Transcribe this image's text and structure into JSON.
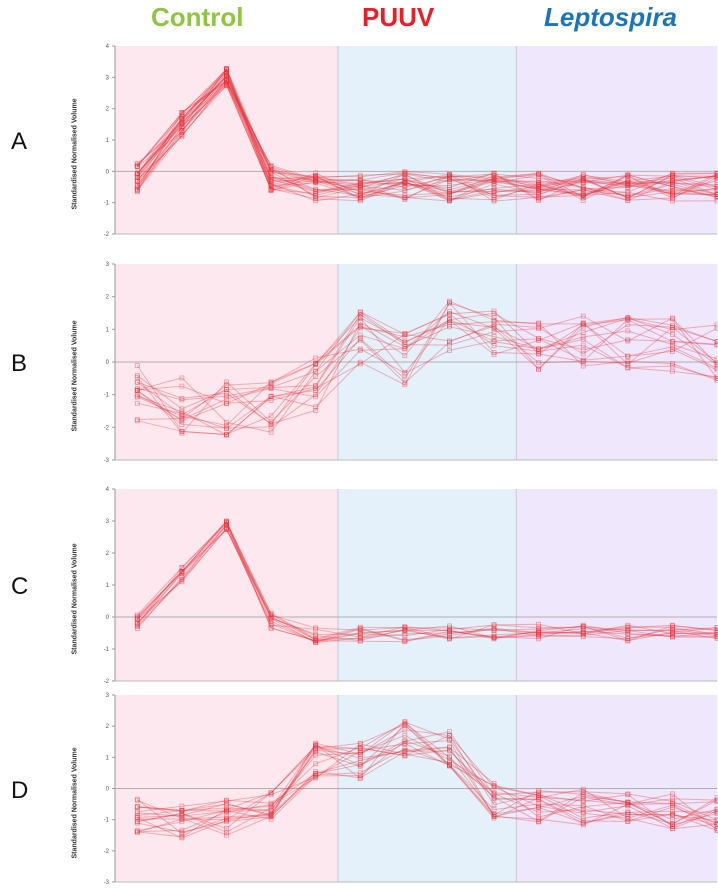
{
  "header": {
    "groups": [
      {
        "label": "Control",
        "color": "#8dc63f"
      },
      {
        "label": "PUUV",
        "color": "#ee1c24"
      },
      {
        "label": "Leptospira",
        "color": "#1b75bc"
      }
    ]
  },
  "colors": {
    "line": "#e8303a",
    "control_bg": "#fde8ef",
    "puuv_bg": "#e4f1fb",
    "lepto_bg": "#efe7fb",
    "zero_line": "#b0b0b0"
  },
  "chart_data": [
    {
      "type": "line",
      "panel": "A",
      "ylabel": "Standardised Normalised Volume",
      "ylim": [
        -2,
        4
      ],
      "yticks": [
        "4",
        "3",
        "2",
        "1",
        "0",
        "-1",
        "-2"
      ],
      "x": [
        1,
        2,
        3,
        4,
        5,
        6,
        7,
        8,
        9,
        10,
        11,
        12,
        13,
        14
      ],
      "groups": [
        {
          "name": "Control",
          "x_range": [
            0.5,
            5.5
          ]
        },
        {
          "name": "PUUV",
          "x_range": [
            5.5,
            9.5
          ]
        },
        {
          "name": "Leptospira",
          "x_range": [
            9.5,
            13.5
          ]
        }
      ],
      "representative_profile": [
        -0.2,
        1.5,
        3.0,
        -0.2,
        -0.5,
        -0.5,
        -0.45,
        -0.5,
        -0.5,
        -0.5,
        -0.5,
        -0.5,
        -0.5,
        -0.5
      ],
      "n_series": 26,
      "spread": 0.45
    },
    {
      "type": "line",
      "panel": "B",
      "ylabel": "Standardised Normalised Volume",
      "ylim": [
        -3,
        3
      ],
      "yticks": [
        "3",
        "2",
        "1",
        "0",
        "-1",
        "-2",
        "-3"
      ],
      "x": [
        1,
        2,
        3,
        4,
        5,
        6,
        7,
        8,
        9,
        10,
        11,
        12,
        13,
        14
      ],
      "groups": [
        {
          "name": "Control",
          "x_range": [
            0.5,
            5.5
          ]
        },
        {
          "name": "PUUV",
          "x_range": [
            5.5,
            9.5
          ]
        },
        {
          "name": "Leptospira",
          "x_range": [
            9.5,
            13.5
          ]
        }
      ],
      "representative_profile": [
        -1.0,
        -1.3,
        -1.5,
        -1.3,
        -0.7,
        0.8,
        0.2,
        1.2,
        0.7,
        0.6,
        0.7,
        0.5,
        0.5,
        0.3
      ],
      "n_series": 16,
      "spread": 0.9
    },
    {
      "type": "line",
      "panel": "C",
      "ylabel": "Standardised Normalised Volume",
      "ylim": [
        -2,
        4
      ],
      "yticks": [
        "4",
        "3",
        "2",
        "1",
        "0",
        "-1",
        "-2"
      ],
      "x": [
        1,
        2,
        3,
        4,
        5,
        6,
        7,
        8,
        9,
        10,
        11,
        12,
        13,
        14
      ],
      "groups": [
        {
          "name": "Control",
          "x_range": [
            0.5,
            5.5
          ]
        },
        {
          "name": "PUUV",
          "x_range": [
            5.5,
            9.5
          ]
        },
        {
          "name": "Leptospira",
          "x_range": [
            9.5,
            13.5
          ]
        }
      ],
      "representative_profile": [
        -0.15,
        1.3,
        2.9,
        -0.1,
        -0.55,
        -0.55,
        -0.55,
        -0.45,
        -0.45,
        -0.45,
        -0.5,
        -0.5,
        -0.5,
        -0.5
      ],
      "n_series": 12,
      "spread": 0.25
    },
    {
      "type": "line",
      "panel": "D",
      "ylabel": "Standardised Normalised Volume",
      "ylim": [
        -3,
        3
      ],
      "yticks": [
        "3",
        "2",
        "1",
        "0",
        "-1",
        "-2",
        "-3"
      ],
      "x": [
        1,
        2,
        3,
        4,
        5,
        6,
        7,
        8,
        9,
        10,
        11,
        12,
        13,
        14
      ],
      "groups": [
        {
          "name": "Control",
          "x_range": [
            0.5,
            5.5
          ]
        },
        {
          "name": "PUUV",
          "x_range": [
            5.5,
            9.5
          ]
        },
        {
          "name": "Leptospira",
          "x_range": [
            9.5,
            13.5
          ]
        }
      ],
      "representative_profile": [
        -0.8,
        -1.0,
        -0.9,
        -0.7,
        0.9,
        0.9,
        1.6,
        1.3,
        -0.4,
        -0.5,
        -0.6,
        -0.6,
        -0.7,
        -0.8
      ],
      "n_series": 18,
      "spread": 0.6
    }
  ]
}
